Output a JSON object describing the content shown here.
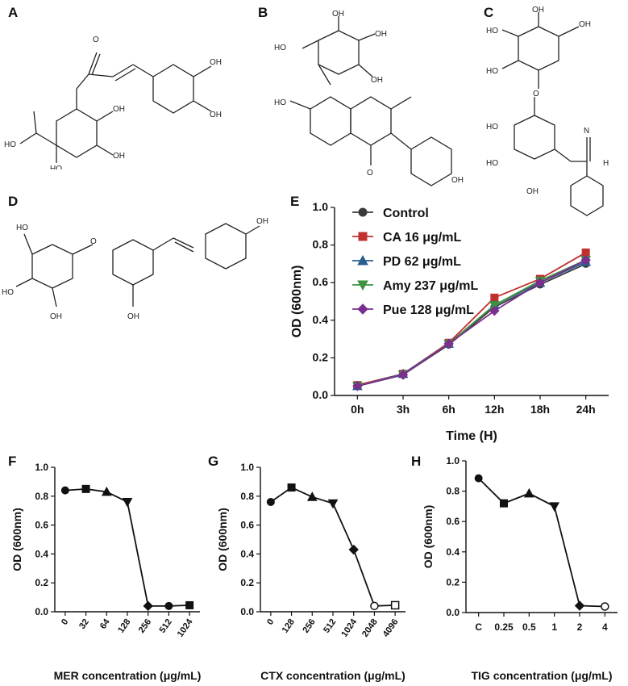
{
  "panels": {
    "A": "A",
    "B": "B",
    "C": "C",
    "D": "D",
    "E": "E",
    "F": "F",
    "G": "G",
    "H": "H"
  },
  "molecule_labels": {
    "oh": "OH",
    "ho": "HO",
    "o": "O",
    "h": "H",
    "n": "N",
    "oh_tail": "OH"
  },
  "chart_data": [
    {
      "id": "E",
      "type": "line",
      "categories": [
        "0h",
        "3h",
        "6h",
        "12h",
        "18h",
        "24h"
      ],
      "xlabel": "Time (H)",
      "ylabel": "OD (600nm)",
      "ylim": [
        0.0,
        1.0
      ],
      "yticks": [
        "0.0",
        "0.2",
        "0.4",
        "0.6",
        "0.8",
        "1.0"
      ],
      "legend_position": "top-left",
      "series": [
        {
          "name": "Control",
          "color": "#3a3a3a",
          "marker": "circle",
          "values": [
            0.05,
            0.11,
            0.27,
            0.47,
            0.59,
            0.7
          ]
        },
        {
          "name": "CA 16 μg/mL",
          "color": "#c0302e",
          "marker": "square",
          "values": [
            0.055,
            0.115,
            0.28,
            0.52,
            0.62,
            0.76
          ]
        },
        {
          "name": "PD 62 μg/mL",
          "color": "#2a5d8f",
          "marker": "triangle-up",
          "values": [
            0.05,
            0.115,
            0.275,
            0.48,
            0.6,
            0.71
          ]
        },
        {
          "name": "Amy 237 μg/mL",
          "color": "#3d9140",
          "marker": "triangle-down",
          "values": [
            0.05,
            0.11,
            0.275,
            0.48,
            0.61,
            0.72
          ]
        },
        {
          "name": "Pue 128 μg/mL",
          "color": "#7b2f8f",
          "marker": "diamond",
          "values": [
            0.05,
            0.11,
            0.275,
            0.45,
            0.6,
            0.72
          ]
        }
      ]
    },
    {
      "id": "F",
      "type": "line",
      "categories": [
        "0",
        "32",
        "64",
        "128",
        "256",
        "512",
        "1024"
      ],
      "xlabel": "MER concentration (μg/mL)",
      "ylabel": "OD (600nm)",
      "ylim": [
        0.0,
        1.0
      ],
      "yticks": [
        "0.0",
        "0.2",
        "0.4",
        "0.6",
        "0.8",
        "1.0"
      ],
      "series": [
        {
          "name": "",
          "values": [
            0.84,
            0.85,
            0.83,
            0.76,
            0.04,
            0.04,
            0.045
          ],
          "markers": [
            "circle",
            "square",
            "triangle-up",
            "triangle-down",
            "diamond",
            "circle",
            "square"
          ]
        }
      ]
    },
    {
      "id": "G",
      "type": "line",
      "categories": [
        "0",
        "128",
        "256",
        "512",
        "1024",
        "2048",
        "4096"
      ],
      "xlabel": "CTX concentration (μg/mL)",
      "ylabel": "OD (600nm)",
      "ylim": [
        0.0,
        1.0
      ],
      "yticks": [
        "0.0",
        "0.2",
        "0.4",
        "0.6",
        "0.8",
        "1.0"
      ],
      "series": [
        {
          "name": "",
          "values": [
            0.76,
            0.86,
            0.795,
            0.75,
            0.43,
            0.04,
            0.045
          ],
          "markers": [
            "circle",
            "square",
            "triangle-up",
            "triangle-down",
            "diamond",
            "open-circle",
            "open-square"
          ]
        }
      ]
    },
    {
      "id": "H",
      "type": "line",
      "categories": [
        "C",
        "0.25",
        "0.5",
        "1",
        "2",
        "4"
      ],
      "xlabel": "TIG concentration (μg/mL)",
      "ylabel": "OD (600nm)",
      "ylim": [
        0.0,
        1.0
      ],
      "yticks": [
        "0.0",
        "0.2",
        "0.4",
        "0.6",
        "0.8",
        "1.0"
      ],
      "series": [
        {
          "name": "",
          "values": [
            0.885,
            0.72,
            0.785,
            0.7,
            0.045,
            0.04
          ],
          "markers": [
            "circle",
            "square",
            "triangle-up",
            "triangle-down",
            "diamond",
            "open-circle"
          ]
        }
      ]
    }
  ]
}
